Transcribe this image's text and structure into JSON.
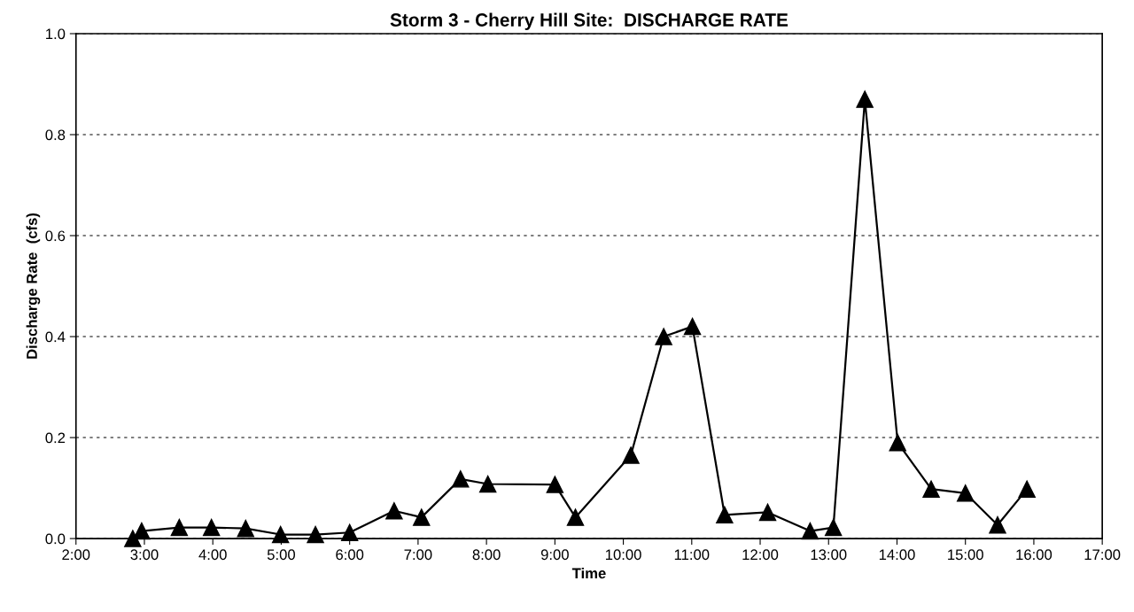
{
  "chart_data": {
    "type": "line",
    "title": "Storm 3 - Cherry Hill Site:  DISCHARGE RATE",
    "xlabel": "Time",
    "ylabel": "Discharge Rate  (cfs)",
    "series": [
      {
        "color": "#000000",
        "x": [
          2.83,
          2.96,
          3.51,
          3.98,
          4.48,
          4.99,
          5.5,
          6.0,
          6.65,
          7.05,
          7.62,
          8.02,
          9.0,
          9.3,
          10.11,
          10.59,
          11.01,
          11.48,
          12.11,
          12.73,
          13.07,
          13.53,
          14.01,
          14.5,
          15.0,
          15.47,
          15.9
        ],
        "values": [
          0,
          0.015,
          0.022,
          0.022,
          0.02,
          0.008,
          0.008,
          0.012,
          0.055,
          0.042,
          0.118,
          0.108,
          0.107,
          0.042,
          0.165,
          0.4,
          0.42,
          0.047,
          0.052,
          0.015,
          0.022,
          0.87,
          0.19,
          0.098,
          0.09,
          0.027,
          0.098
        ]
      }
    ],
    "xlim": [
      2,
      17
    ],
    "xticks": [
      {
        "value": 2,
        "label": "2:00"
      },
      {
        "value": 3,
        "label": "3:00"
      },
      {
        "value": 4,
        "label": "4:00"
      },
      {
        "value": 5,
        "label": "5:00"
      },
      {
        "value": 6,
        "label": "6:00"
      },
      {
        "value": 7,
        "label": "7:00"
      },
      {
        "value": 8,
        "label": "8:00"
      },
      {
        "value": 9,
        "label": "9:00"
      },
      {
        "value": 10,
        "label": "10:00"
      },
      {
        "value": 11,
        "label": "11:00"
      },
      {
        "value": 12,
        "label": "12:00"
      },
      {
        "value": 13,
        "label": "13:00"
      },
      {
        "value": 14,
        "label": "14:00"
      },
      {
        "value": 15,
        "label": "15:00"
      },
      {
        "value": 16,
        "label": "16:00"
      },
      {
        "value": 17,
        "label": "17:00"
      }
    ],
    "ylim": [
      0,
      1.0
    ],
    "yticks": [
      {
        "value": 0,
        "label": "0.0"
      },
      {
        "value": 0.2,
        "label": "0.2"
      },
      {
        "value": 0.4,
        "label": "0.4"
      },
      {
        "value": 0.6,
        "label": "0.6"
      },
      {
        "value": 0.8,
        "label": "0.8"
      },
      {
        "value": 1.0,
        "label": "1.0"
      }
    ],
    "grid": "y",
    "marker": "triangle",
    "line_style": "solid"
  }
}
